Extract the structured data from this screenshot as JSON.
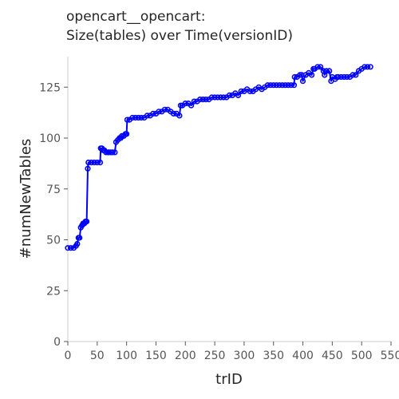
{
  "chart_data": {
    "type": "line",
    "title_line1": "opencart__opencart:",
    "title_line2": "Size(tables) over Time(versionID)",
    "xlabel": "trID",
    "ylabel": "#numNewTables",
    "xlim": [
      0,
      550
    ],
    "ylim": [
      0,
      140
    ],
    "xticks": [
      0,
      50,
      100,
      150,
      200,
      250,
      300,
      350,
      400,
      450,
      500,
      550
    ],
    "yticks": [
      0,
      25,
      50,
      75,
      100,
      125
    ],
    "grid": false,
    "series_color": "#0000ff",
    "series": [
      {
        "x": [
          0,
          5,
          10,
          14,
          16,
          18,
          20,
          22,
          24,
          26,
          28,
          30,
          32,
          34,
          35,
          40,
          45,
          50,
          55,
          56,
          58,
          60,
          62,
          65,
          68,
          70,
          73,
          76,
          80,
          82,
          85,
          88,
          90,
          92,
          95,
          98,
          100,
          101,
          105,
          110,
          115,
          120,
          125,
          130,
          135,
          140,
          145,
          150,
          155,
          160,
          165,
          170,
          175,
          180,
          185,
          190,
          192,
          195,
          200,
          205,
          210,
          215,
          220,
          225,
          230,
          235,
          240,
          245,
          250,
          255,
          260,
          265,
          270,
          275,
          280,
          285,
          290,
          295,
          300,
          305,
          310,
          315,
          320,
          325,
          330,
          335,
          340,
          345,
          350,
          355,
          360,
          365,
          370,
          375,
          380,
          385,
          386,
          390,
          395,
          398,
          400,
          405,
          410,
          415,
          418,
          420,
          425,
          430,
          435,
          437,
          440,
          445,
          448,
          450,
          455,
          458,
          460,
          465,
          470,
          475,
          480,
          485,
          490,
          495,
          500,
          505,
          510,
          515
        ],
        "y": [
          46,
          46,
          46,
          47,
          48,
          51,
          51,
          56,
          57,
          58,
          58,
          59,
          59,
          85,
          88,
          88,
          88,
          88,
          88,
          95,
          95,
          94,
          94,
          93,
          93,
          93,
          93,
          93,
          93,
          98,
          99,
          100,
          100,
          101,
          101,
          102,
          102,
          109,
          109,
          110,
          110,
          110,
          110,
          110,
          111,
          111,
          112,
          112,
          113,
          113,
          114,
          114,
          113,
          112,
          112,
          111,
          116,
          116,
          117,
          117,
          116,
          118,
          118,
          119,
          119,
          119,
          119,
          120,
          120,
          120,
          120,
          120,
          120,
          121,
          121,
          122,
          121,
          123,
          123,
          124,
          123,
          123,
          124,
          125,
          124,
          125,
          126,
          126,
          126,
          126,
          126,
          126,
          126,
          126,
          126,
          126,
          130,
          130,
          131,
          131,
          128,
          131,
          132,
          131,
          134,
          134,
          135,
          135,
          133,
          131,
          133,
          133,
          128,
          130,
          129,
          130,
          130,
          130,
          130,
          130,
          130,
          131,
          131,
          133,
          134,
          135,
          135,
          135
        ]
      }
    ]
  }
}
